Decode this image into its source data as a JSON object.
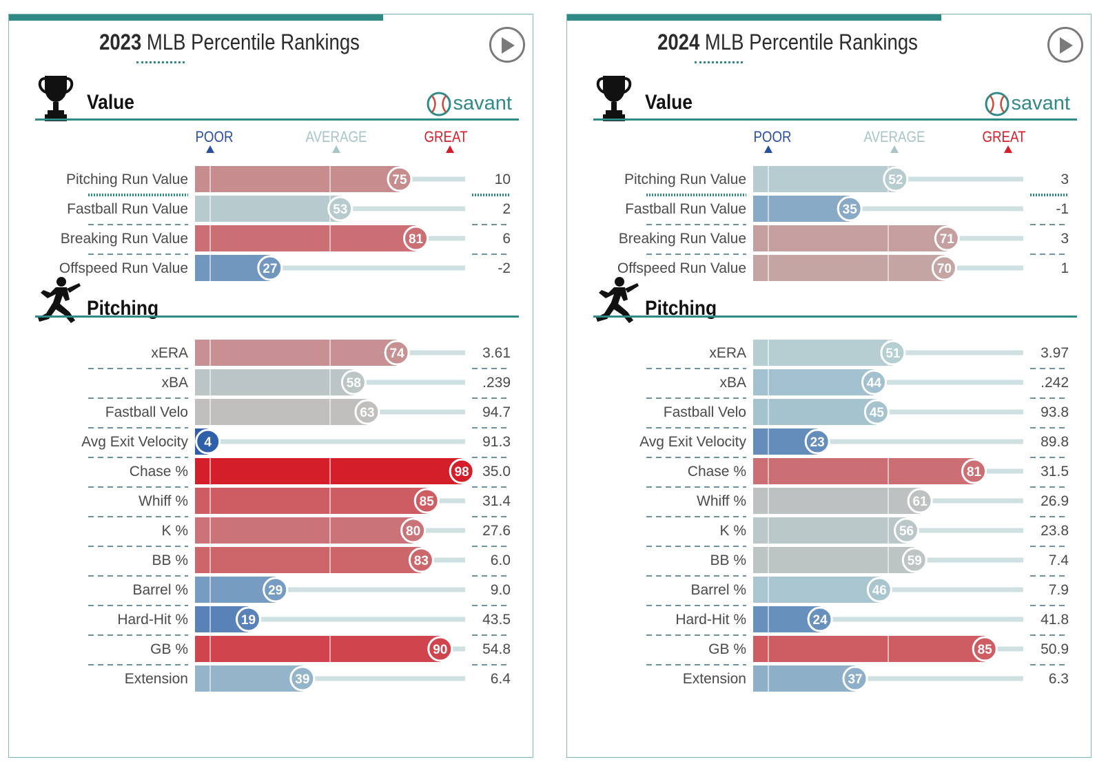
{
  "panels": [
    {
      "year": "2023",
      "title_rest": " MLB Percentile Rankings",
      "brand": "savant",
      "scale": {
        "poor": "POOR",
        "average": "AVERAGE",
        "great": "GREAT"
      },
      "sections": [
        {
          "name": "Value",
          "icon": "trophy-icon",
          "rows": [
            {
              "label": "Pitching Run Value",
              "percentile": 75,
              "value": "10"
            },
            {
              "label": "Fastball Run Value",
              "percentile": 53,
              "value": "2"
            },
            {
              "label": "Breaking Run Value",
              "percentile": 81,
              "value": "6"
            },
            {
              "label": "Offspeed Run Value",
              "percentile": 27,
              "value": "-2"
            }
          ]
        },
        {
          "name": "Pitching",
          "icon": "pitcher-icon",
          "rows": [
            {
              "label": "xERA",
              "percentile": 74,
              "value": "3.61"
            },
            {
              "label": "xBA",
              "percentile": 58,
              "value": ".239"
            },
            {
              "label": "Fastball Velo",
              "percentile": 63,
              "value": "94.7"
            },
            {
              "label": "Avg Exit Velocity",
              "percentile": 4,
              "value": "91.3"
            },
            {
              "label": "Chase %",
              "percentile": 98,
              "value": "35.0"
            },
            {
              "label": "Whiff %",
              "percentile": 85,
              "value": "31.4"
            },
            {
              "label": "K %",
              "percentile": 80,
              "value": "27.6"
            },
            {
              "label": "BB %",
              "percentile": 83,
              "value": "6.0"
            },
            {
              "label": "Barrel %",
              "percentile": 29,
              "value": "9.0"
            },
            {
              "label": "Hard-Hit %",
              "percentile": 19,
              "value": "43.5"
            },
            {
              "label": "GB %",
              "percentile": 90,
              "value": "54.8"
            },
            {
              "label": "Extension",
              "percentile": 39,
              "value": "6.4"
            }
          ]
        }
      ]
    },
    {
      "year": "2024",
      "title_rest": " MLB Percentile Rankings",
      "brand": "savant",
      "scale": {
        "poor": "POOR",
        "average": "AVERAGE",
        "great": "GREAT"
      },
      "sections": [
        {
          "name": "Value",
          "icon": "trophy-icon",
          "rows": [
            {
              "label": "Pitching Run Value",
              "percentile": 52,
              "value": "3"
            },
            {
              "label": "Fastball Run Value",
              "percentile": 35,
              "value": "-1"
            },
            {
              "label": "Breaking Run Value",
              "percentile": 71,
              "value": "3"
            },
            {
              "label": "Offspeed Run Value",
              "percentile": 70,
              "value": "1"
            }
          ]
        },
        {
          "name": "Pitching",
          "icon": "pitcher-icon",
          "rows": [
            {
              "label": "xERA",
              "percentile": 51,
              "value": "3.97"
            },
            {
              "label": "xBA",
              "percentile": 44,
              "value": ".242"
            },
            {
              "label": "Fastball Velo",
              "percentile": 45,
              "value": "93.8"
            },
            {
              "label": "Avg Exit Velocity",
              "percentile": 23,
              "value": "89.8"
            },
            {
              "label": "Chase %",
              "percentile": 81,
              "value": "31.5"
            },
            {
              "label": "Whiff %",
              "percentile": 61,
              "value": "26.9"
            },
            {
              "label": "K %",
              "percentile": 56,
              "value": "23.8"
            },
            {
              "label": "BB %",
              "percentile": 59,
              "value": "7.4"
            },
            {
              "label": "Barrel %",
              "percentile": 46,
              "value": "7.9"
            },
            {
              "label": "Hard-Hit %",
              "percentile": 24,
              "value": "41.8"
            },
            {
              "label": "GB %",
              "percentile": 85,
              "value": "50.9"
            },
            {
              "label": "Extension",
              "percentile": 37,
              "value": "6.3"
            }
          ]
        }
      ]
    }
  ],
  "chart_data": {
    "type": "bar",
    "xlim": [
      0,
      100
    ],
    "categories": [
      "Pitching Run Value",
      "Fastball Run Value",
      "Breaking Run Value",
      "Offspeed Run Value",
      "xERA",
      "xBA",
      "Fastball Velo",
      "Avg Exit Velocity",
      "Chase %",
      "Whiff %",
      "K %",
      "BB %",
      "Barrel %",
      "Hard-Hit %",
      "GB %",
      "Extension"
    ],
    "series": [
      {
        "name": "2023",
        "values": [
          75,
          53,
          81,
          27,
          74,
          58,
          63,
          4,
          98,
          85,
          80,
          83,
          29,
          19,
          90,
          39
        ]
      },
      {
        "name": "2024",
        "values": [
          52,
          35,
          71,
          70,
          51,
          44,
          45,
          23,
          81,
          61,
          56,
          59,
          46,
          24,
          85,
          37
        ]
      }
    ],
    "colors": {
      "poor": "#2255a8",
      "average": "#b4cfd3",
      "great": "#d41e2a",
      "track": "#cfe0e2",
      "accent": "#2f8a87"
    }
  }
}
